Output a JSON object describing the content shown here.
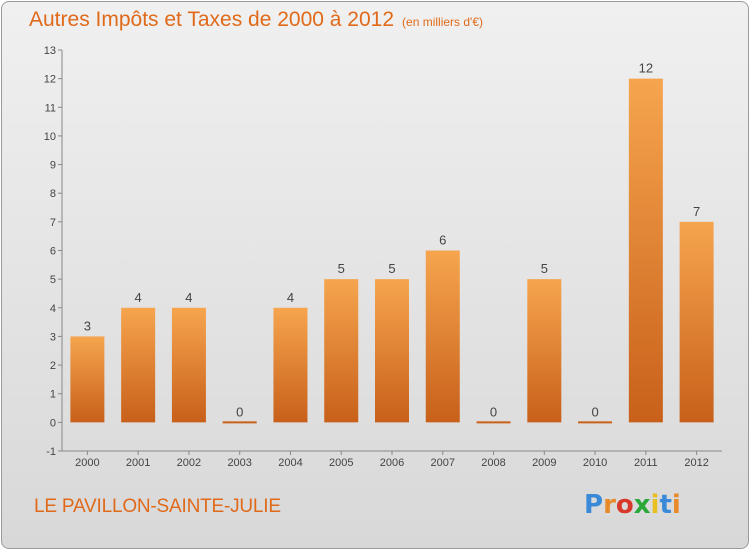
{
  "header": {
    "title": "Autres Impôts et Taxes de 2000 à 2012",
    "subtitle": "(en milliers d'€)"
  },
  "footer": {
    "commune": "LE PAVILLON-SAINTE-JULIE",
    "logo_letters": [
      "P",
      "r",
      "o",
      "x",
      "i",
      "t",
      "i"
    ],
    "logo_colors": [
      "#3a8ad8",
      "#e8892a",
      "#d8382a",
      "#2aa83a",
      "#e8c020",
      "#3a8ad8",
      "#e8892a"
    ]
  },
  "chart_data": {
    "type": "bar",
    "title": "Autres Impôts et Taxes de 2000 à 2012",
    "categories": [
      "2000",
      "2001",
      "2002",
      "2003",
      "2004",
      "2005",
      "2006",
      "2007",
      "2008",
      "2009",
      "2010",
      "2011",
      "2012"
    ],
    "values": [
      3,
      4,
      4,
      0,
      4,
      5,
      5,
      6,
      0,
      5,
      0,
      12,
      7
    ],
    "ylim": [
      -1,
      13
    ],
    "yticks": [
      -1,
      0,
      1,
      2,
      3,
      4,
      5,
      6,
      7,
      8,
      9,
      10,
      11,
      12,
      13
    ],
    "grid": false,
    "colors": {
      "bar_light": "#f6a54e",
      "bar_dark": "#c8601a",
      "axis": "#888888"
    }
  }
}
